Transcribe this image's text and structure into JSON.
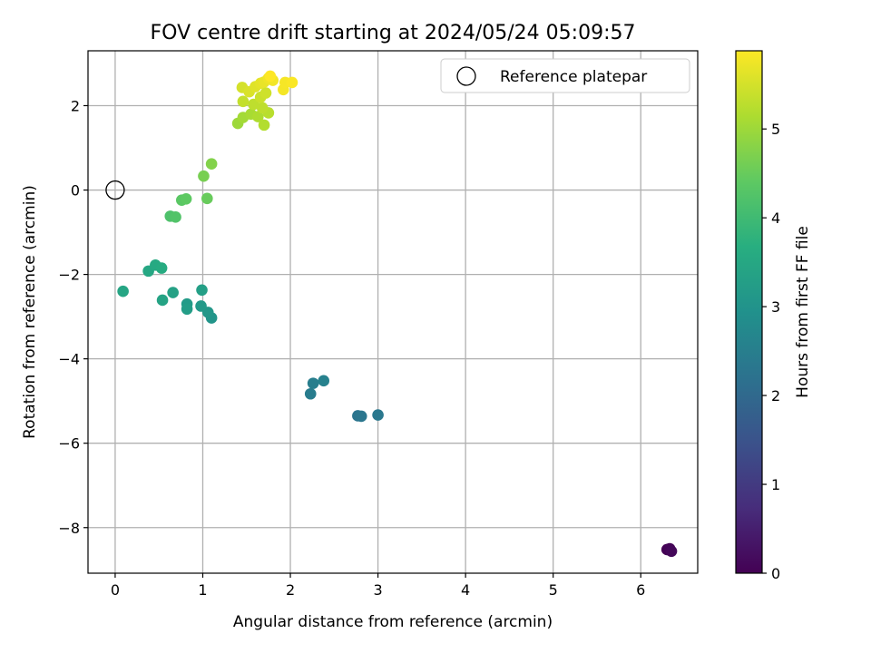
{
  "chart_data": {
    "type": "scatter",
    "title": "FOV centre drift starting at 2024/05/24 05:09:57",
    "xlabel": "Angular distance from reference (arcmin)",
    "ylabel": "Rotation from reference (arcmin)",
    "xlim": [
      -0.31,
      6.65
    ],
    "ylim": [
      -9.08,
      3.3
    ],
    "xticks": [
      {
        "value": 0,
        "label": "0"
      },
      {
        "value": 1,
        "label": "1"
      },
      {
        "value": 2,
        "label": "2"
      },
      {
        "value": 3,
        "label": "3"
      },
      {
        "value": 4,
        "label": "4"
      },
      {
        "value": 5,
        "label": "5"
      },
      {
        "value": 6,
        "label": "6"
      }
    ],
    "yticks": [
      {
        "value": -8,
        "label": "−8"
      },
      {
        "value": -6,
        "label": "−6"
      },
      {
        "value": -4,
        "label": "−4"
      },
      {
        "value": -2,
        "label": "−2"
      },
      {
        "value": 0,
        "label": "0"
      },
      {
        "value": 2,
        "label": "2"
      }
    ],
    "grid": true,
    "legend": {
      "position": "top-right",
      "label": "Reference platepar"
    },
    "reference_point": {
      "x": 0,
      "y": 0
    },
    "colorbar": {
      "label": "Hours from first FF file",
      "colormap": "viridis",
      "range": [
        0,
        5.88
      ],
      "ticks": [
        {
          "value": 0,
          "label": "0"
        },
        {
          "value": 1,
          "label": "1"
        },
        {
          "value": 2,
          "label": "2"
        },
        {
          "value": 3,
          "label": "3"
        },
        {
          "value": 4,
          "label": "4"
        },
        {
          "value": 5,
          "label": "5"
        }
      ]
    },
    "points": [
      {
        "x": 6.3,
        "y": -8.52,
        "c": 0.0
      },
      {
        "x": 6.33,
        "y": -8.5,
        "c": 0.05
      },
      {
        "x": 6.35,
        "y": -8.56,
        "c": 0.1
      },
      {
        "x": 2.23,
        "y": -4.83,
        "c": 2.45
      },
      {
        "x": 2.26,
        "y": -4.58,
        "c": 2.5
      },
      {
        "x": 2.38,
        "y": -4.52,
        "c": 2.55
      },
      {
        "x": 2.77,
        "y": -5.35,
        "c": 2.25
      },
      {
        "x": 2.81,
        "y": -5.36,
        "c": 2.3
      },
      {
        "x": 3.0,
        "y": -5.33,
        "c": 2.35
      },
      {
        "x": 1.1,
        "y": -3.03,
        "c": 3.05
      },
      {
        "x": 1.06,
        "y": -2.9,
        "c": 3.1
      },
      {
        "x": 0.98,
        "y": -2.75,
        "c": 3.15
      },
      {
        "x": 0.82,
        "y": -2.7,
        "c": 3.2
      },
      {
        "x": 0.82,
        "y": -2.82,
        "c": 3.25
      },
      {
        "x": 0.99,
        "y": -2.37,
        "c": 3.3
      },
      {
        "x": 0.66,
        "y": -2.43,
        "c": 3.35
      },
      {
        "x": 0.54,
        "y": -2.61,
        "c": 3.4
      },
      {
        "x": 0.09,
        "y": -2.4,
        "c": 3.45
      },
      {
        "x": 0.38,
        "y": -1.92,
        "c": 3.5
      },
      {
        "x": 0.46,
        "y": -1.78,
        "c": 3.55
      },
      {
        "x": 0.53,
        "y": -1.85,
        "c": 3.6
      },
      {
        "x": 0.63,
        "y": -0.62,
        "c": 4.2
      },
      {
        "x": 0.69,
        "y": -0.64,
        "c": 4.25
      },
      {
        "x": 0.76,
        "y": -0.24,
        "c": 4.35
      },
      {
        "x": 0.81,
        "y": -0.21,
        "c": 4.4
      },
      {
        "x": 1.05,
        "y": -0.2,
        "c": 4.5
      },
      {
        "x": 1.01,
        "y": 0.33,
        "c": 4.65
      },
      {
        "x": 1.1,
        "y": 0.62,
        "c": 4.75
      },
      {
        "x": 1.4,
        "y": 1.58,
        "c": 5.0
      },
      {
        "x": 1.46,
        "y": 1.72,
        "c": 5.05
      },
      {
        "x": 1.55,
        "y": 1.8,
        "c": 5.1
      },
      {
        "x": 1.63,
        "y": 1.74,
        "c": 5.15
      },
      {
        "x": 1.7,
        "y": 1.54,
        "c": 5.2
      },
      {
        "x": 1.75,
        "y": 1.83,
        "c": 5.25
      },
      {
        "x": 1.58,
        "y": 2.03,
        "c": 5.3
      },
      {
        "x": 1.68,
        "y": 1.95,
        "c": 5.3
      },
      {
        "x": 1.46,
        "y": 2.1,
        "c": 5.35
      },
      {
        "x": 1.66,
        "y": 2.2,
        "c": 5.4
      },
      {
        "x": 1.72,
        "y": 2.3,
        "c": 5.45
      },
      {
        "x": 1.45,
        "y": 2.43,
        "c": 5.5
      },
      {
        "x": 1.53,
        "y": 2.33,
        "c": 5.55
      },
      {
        "x": 1.6,
        "y": 2.45,
        "c": 5.6
      },
      {
        "x": 1.66,
        "y": 2.53,
        "c": 5.65
      },
      {
        "x": 1.7,
        "y": 2.56,
        "c": 5.7
      },
      {
        "x": 1.75,
        "y": 2.65,
        "c": 5.75
      },
      {
        "x": 1.8,
        "y": 2.6,
        "c": 5.78
      },
      {
        "x": 1.92,
        "y": 2.38,
        "c": 5.8
      },
      {
        "x": 1.94,
        "y": 2.55,
        "c": 5.82
      },
      {
        "x": 2.02,
        "y": 2.55,
        "c": 5.85
      },
      {
        "x": 1.77,
        "y": 2.7,
        "c": 5.88
      }
    ]
  }
}
